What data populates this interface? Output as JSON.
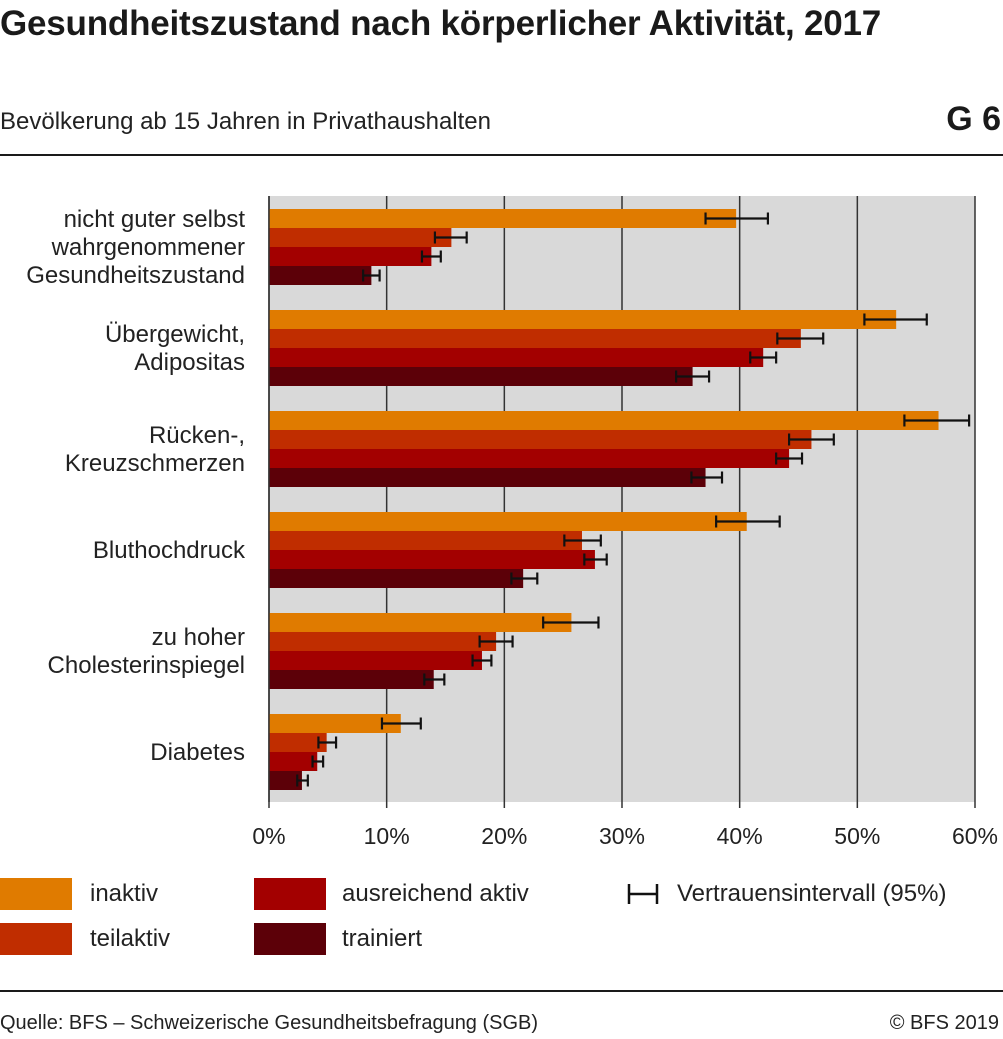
{
  "header": {
    "title": "Gesundheitszustand nach körperlicher Aktivität, 2017",
    "subtitle": "Bevölkerung ab 15 Jahren in Privathaushalten",
    "graphic_id": "G 6"
  },
  "footer": {
    "source": "Quelle: BFS – Schweizerische Gesundheitsbefragung (SGB)",
    "copyright": "© BFS 2019"
  },
  "legend": {
    "items": [
      {
        "label": "inaktiv",
        "color": "#e07b00"
      },
      {
        "label": "teilaktiv",
        "color": "#c02d00"
      },
      {
        "label": "ausreichend aktiv",
        "color": "#a30000"
      },
      {
        "label": "trainiert",
        "color": "#5c0008"
      }
    ],
    "ci_label": "Vertrauensintervall (95%)"
  },
  "chart_data": {
    "type": "bar",
    "orientation": "horizontal",
    "categories": [
      [
        "nicht guter selbst",
        "wahrgenommener",
        "Gesundheitszustand"
      ],
      [
        "Übergewicht,",
        "Adipositas"
      ],
      [
        "Rücken-,",
        "Kreuzschmerzen"
      ],
      [
        "Bluthochdruck"
      ],
      [
        "zu hoher",
        "Cholesterinspiegel"
      ],
      [
        "Diabetes"
      ]
    ],
    "series": [
      {
        "name": "inaktiv",
        "color": "#e07b00",
        "values": [
          39.7,
          53.3,
          56.9,
          40.6,
          25.7,
          11.2
        ],
        "ci": [
          [
            37.1,
            42.4
          ],
          [
            50.6,
            55.9
          ],
          [
            54.0,
            59.5
          ],
          [
            38.0,
            43.4
          ],
          [
            23.3,
            28.0
          ],
          [
            9.6,
            12.9
          ]
        ]
      },
      {
        "name": "teilaktiv",
        "color": "#c02d00",
        "values": [
          15.5,
          45.2,
          46.1,
          26.6,
          19.3,
          4.9
        ],
        "ci": [
          [
            14.1,
            16.8
          ],
          [
            43.2,
            47.1
          ],
          [
            44.2,
            48.0
          ],
          [
            25.1,
            28.2
          ],
          [
            17.9,
            20.7
          ],
          [
            4.2,
            5.7
          ]
        ]
      },
      {
        "name": "ausreichend aktiv",
        "color": "#a30000",
        "values": [
          13.8,
          42.0,
          44.2,
          27.7,
          18.1,
          4.1
        ],
        "ci": [
          [
            13.0,
            14.6
          ],
          [
            40.9,
            43.1
          ],
          [
            43.1,
            45.3
          ],
          [
            26.8,
            28.7
          ],
          [
            17.3,
            18.9
          ],
          [
            3.7,
            4.6
          ]
        ]
      },
      {
        "name": "trainiert",
        "color": "#5c0008",
        "values": [
          8.7,
          36.0,
          37.1,
          21.6,
          14.0,
          2.8
        ],
        "ci": [
          [
            8.0,
            9.4
          ],
          [
            34.6,
            37.4
          ],
          [
            35.9,
            38.5
          ],
          [
            20.6,
            22.8
          ],
          [
            13.2,
            14.9
          ],
          [
            2.4,
            3.3
          ]
        ]
      }
    ],
    "xlim": [
      0,
      60
    ],
    "xticks": [
      0,
      10,
      20,
      30,
      40,
      50,
      60
    ],
    "xtick_labels": [
      "0%",
      "10%",
      "20%",
      "30%",
      "40%",
      "50%",
      "60%"
    ],
    "grid": true,
    "legend_position": "bottom"
  }
}
